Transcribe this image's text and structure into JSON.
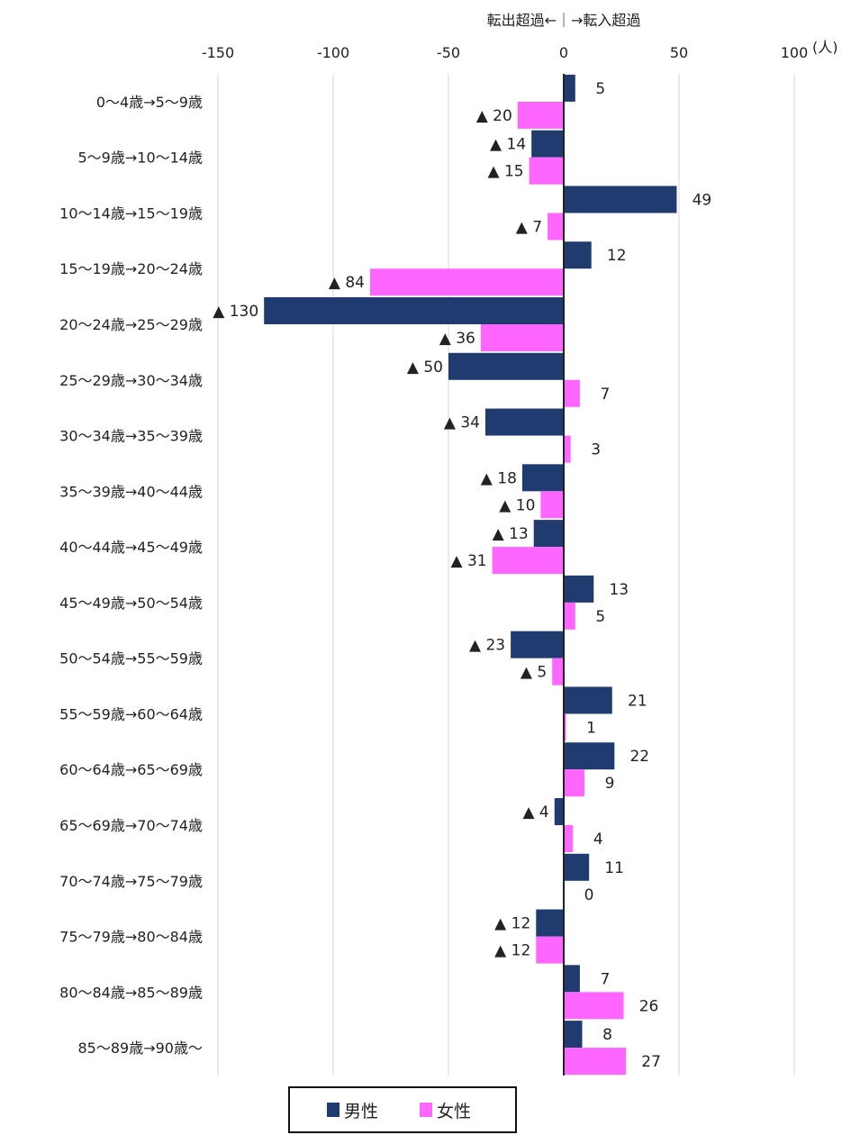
{
  "chart_data": {
    "type": "bar",
    "orientation": "horizontal",
    "direction_label": "転出超過←｜→転入超過",
    "unit": "(人)",
    "negative_marker": "▲",
    "xlim": [
      -150,
      100
    ],
    "xticks": [
      -150,
      -100,
      -50,
      0,
      50,
      100
    ],
    "grid": true,
    "categories": [
      "0～4歳→5～9歳",
      "5～9歳→10～14歳",
      "10～14歳→15～19歳",
      "15～19歳→20～24歳",
      "20～24歳→25～29歳",
      "25～29歳→30～34歳",
      "30～34歳→35～39歳",
      "35～39歳→40～44歳",
      "40～44歳→45～49歳",
      "45～49歳→50～54歳",
      "50～54歳→55～59歳",
      "55～59歳→60～64歳",
      "60～64歳→65～69歳",
      "65～69歳→70～74歳",
      "70～74歳→75～79歳",
      "75～79歳→80～84歳",
      "80～84歳→85～89歳",
      "85～89歳→90歳～"
    ],
    "series": [
      {
        "name": "男性",
        "color": "#1f3b70",
        "values": [
          5,
          -14,
          49,
          12,
          -130,
          -50,
          -34,
          -18,
          -13,
          13,
          -23,
          21,
          22,
          -4,
          11,
          -12,
          7,
          8
        ]
      },
      {
        "name": "女性",
        "color": "#ff66ff",
        "values": [
          -20,
          -15,
          -7,
          -84,
          -36,
          7,
          3,
          -10,
          -31,
          5,
          -5,
          1,
          9,
          4,
          0,
          -12,
          26,
          27
        ]
      }
    ],
    "legend": {
      "placement": "bottom",
      "items": [
        "男性",
        "女性"
      ]
    }
  }
}
